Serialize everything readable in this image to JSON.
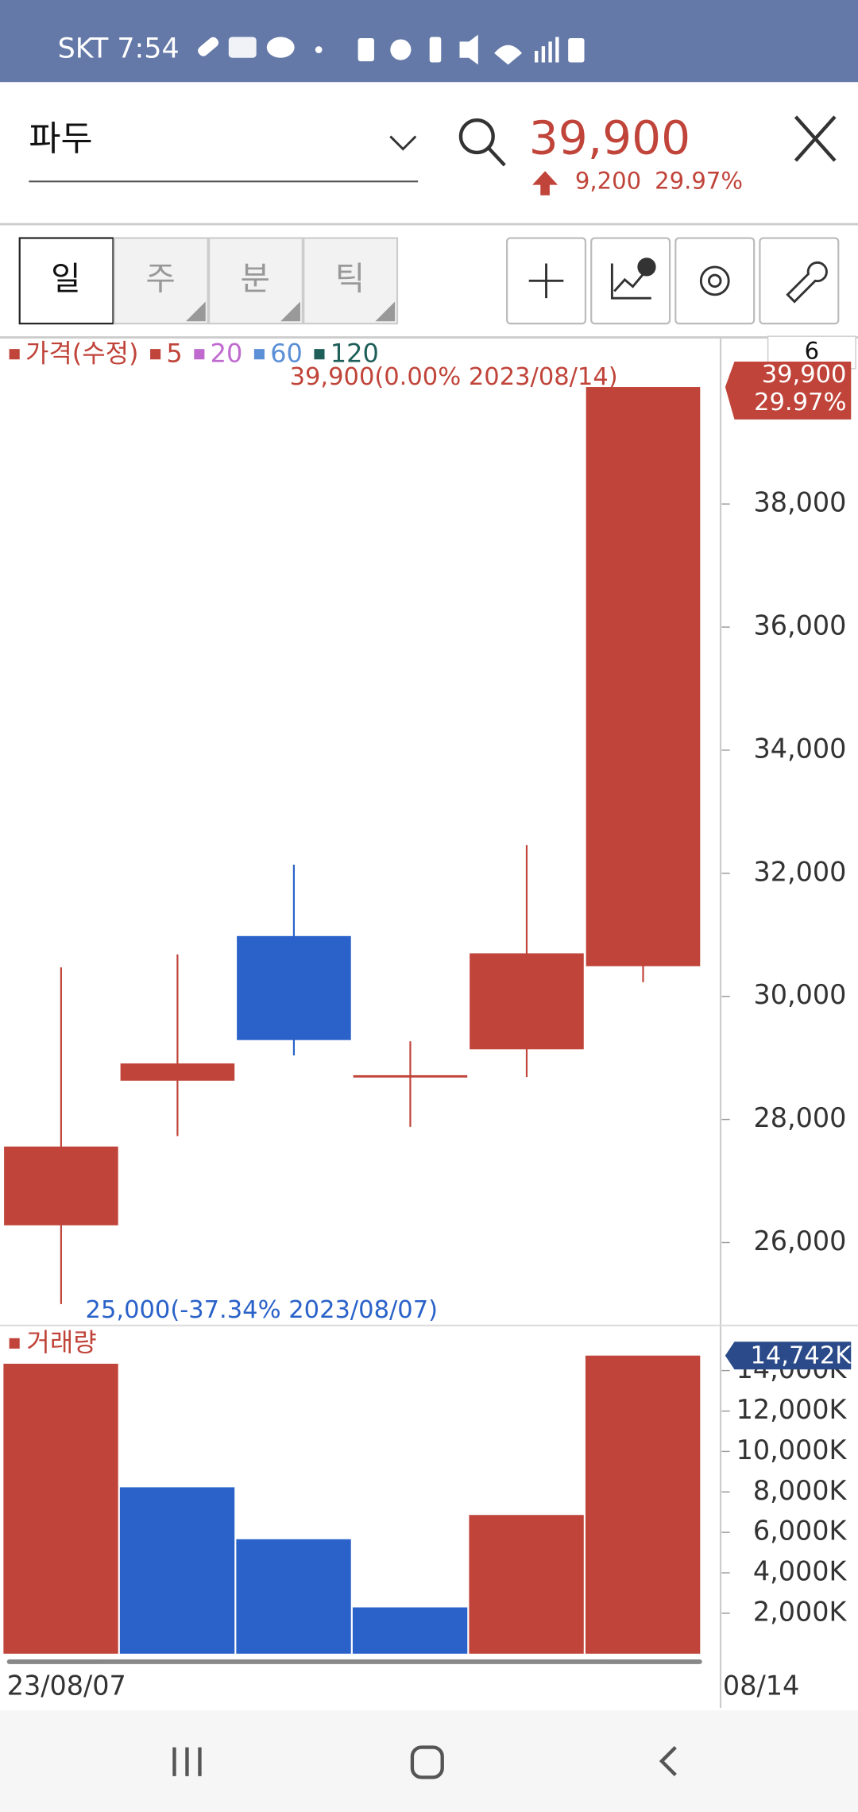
{
  "status_bar": {
    "carrier_time": "SKT 7:54"
  },
  "header": {
    "stock_name": "파두",
    "price": "39,900",
    "change": "9,200",
    "change_pct": "29.97%"
  },
  "tabs": [
    "일",
    "주",
    "분",
    "틱"
  ],
  "period_box": "6",
  "chart_data": [
    {
      "type": "candlestick",
      "legend": [
        {
          "name": "가격(수정)",
          "color": "#c0443a"
        },
        {
          "name": "5",
          "color": "#c0443a"
        },
        {
          "name": "20",
          "color": "#c06ad0"
        },
        {
          "name": "60",
          "color": "#5b8fd6"
        },
        {
          "name": "120",
          "color": "#1f5f5a"
        }
      ],
      "categories": [
        "23/08/07",
        null,
        null,
        null,
        null,
        "08/14"
      ],
      "open": [
        26280,
        28630,
        30980,
        28700,
        29140,
        30490
      ],
      "high": [
        30470,
        30680,
        32140,
        29270,
        32460,
        39900
      ],
      "low": [
        25000,
        27730,
        29040,
        27880,
        28690,
        30230
      ],
      "close": [
        27560,
        28910,
        29290,
        28700,
        30700,
        39900
      ],
      "up_color": "#c0443a",
      "down_color": "#2a62c9",
      "ylim": [
        24690,
        40650
      ],
      "yticks": [
        {
          "value": 26000,
          "label": "26,000"
        },
        {
          "value": 28000,
          "label": "28,000"
        },
        {
          "value": 30000,
          "label": "30,000"
        },
        {
          "value": 32000,
          "label": "32,000"
        },
        {
          "value": 34000,
          "label": "34,000"
        },
        {
          "value": 36000,
          "label": "36,000"
        },
        {
          "value": 38000,
          "label": "38,000"
        }
      ],
      "last_price": {
        "value": 39900,
        "label": "39,900",
        "change_label": "29.97%"
      },
      "annotations": [
        {
          "value": 39900,
          "label": "39,900(0.00% 2023/08/14)"
        },
        {
          "value": 25000,
          "label": "25,000(-37.34% 2023/08/07)"
        }
      ]
    },
    {
      "type": "bar",
      "title": "거래량",
      "values": [
        14340,
        8230,
        5660,
        2290,
        6860,
        14742
      ],
      "colors": [
        "#c0443a",
        "#2a62c9",
        "#2a62c9",
        "#2a62c9",
        "#c0443a",
        "#c0443a"
      ],
      "ylim": [
        0,
        16060
      ],
      "yticks": [
        {
          "value": 2000,
          "label": "2,000K"
        },
        {
          "value": 4000,
          "label": "4,000K"
        },
        {
          "value": 6000,
          "label": "6,000K"
        },
        {
          "value": 8000,
          "label": "8,000K"
        },
        {
          "value": 10000,
          "label": "10,000K"
        },
        {
          "value": 12000,
          "label": "12,000K"
        },
        {
          "value": 14000,
          "label": "14,000K"
        }
      ],
      "last_value": {
        "value": 14742,
        "label": "14,742K"
      }
    }
  ]
}
